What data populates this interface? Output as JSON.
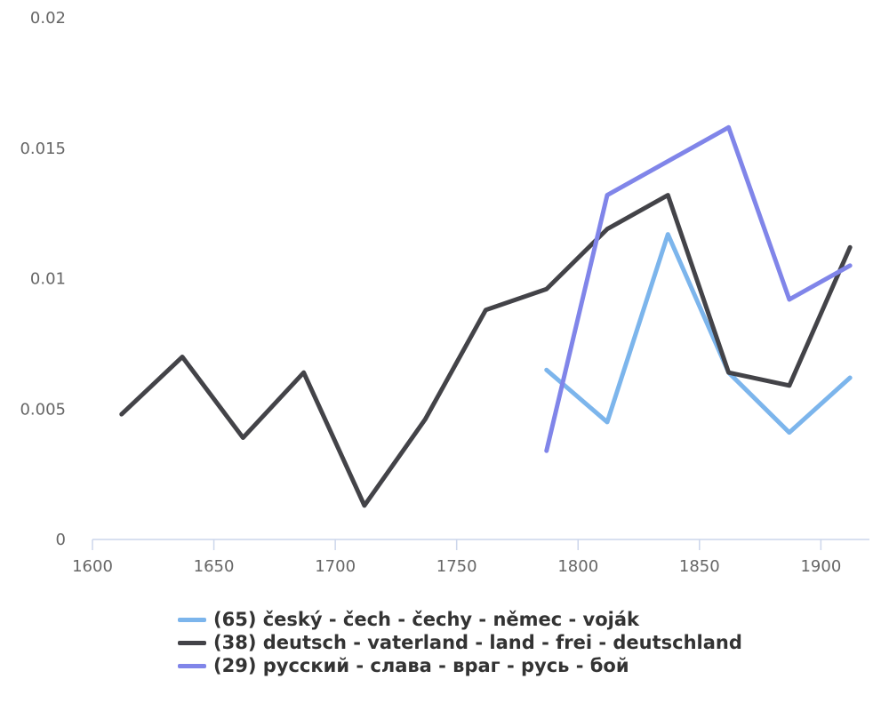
{
  "chart_data": {
    "type": "line",
    "title": "",
    "xlabel": "",
    "ylabel": "",
    "xlim": [
      1600,
      1920
    ],
    "ylim": [
      0,
      0.02
    ],
    "x_ticks": [
      "1600",
      "1650",
      "1700",
      "1750",
      "1800",
      "1850",
      "1900"
    ],
    "y_ticks": [
      "0",
      "0.005",
      "0.01",
      "0.015",
      "0.02"
    ],
    "grid": false,
    "legend_position": "bottom",
    "series": [
      {
        "name": "(65) český - čech - čechy - němec - voják",
        "color": "#7cb5ec",
        "points": [
          [
            1787,
            0.0065
          ],
          [
            1812,
            0.0045
          ],
          [
            1837,
            0.0117
          ],
          [
            1862,
            0.0064
          ],
          [
            1887,
            0.0041
          ],
          [
            1912,
            0.0062
          ]
        ]
      },
      {
        "name": "(38) deutsch - vaterland - land - frei - deutschland",
        "color": "#434348",
        "points": [
          [
            1612,
            0.0048
          ],
          [
            1637,
            0.007
          ],
          [
            1662,
            0.0039
          ],
          [
            1687,
            0.0064
          ],
          [
            1712,
            0.0013
          ],
          [
            1737,
            0.0046
          ],
          [
            1762,
            0.0088
          ],
          [
            1787,
            0.0096
          ],
          [
            1812,
            0.0119
          ],
          [
            1837,
            0.0132
          ],
          [
            1862,
            0.0064
          ],
          [
            1887,
            0.0059
          ],
          [
            1912,
            0.0112
          ]
        ]
      },
      {
        "name": "(29) русский - слава - враг - русь - бой",
        "color": "#8085e9",
        "points": [
          [
            1787,
            0.0034
          ],
          [
            1812,
            0.0132
          ],
          [
            1837,
            0.0145
          ],
          [
            1862,
            0.0158
          ],
          [
            1887,
            0.0092
          ],
          [
            1912,
            0.0105
          ]
        ]
      }
    ]
  }
}
